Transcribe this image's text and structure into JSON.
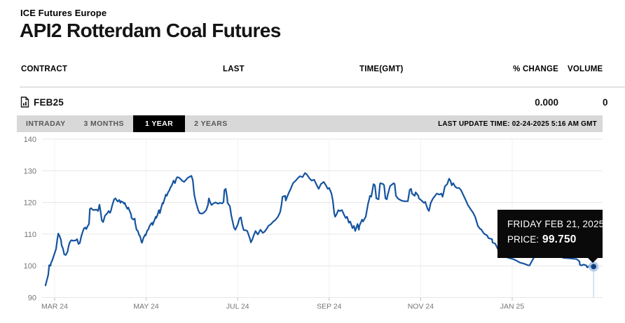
{
  "header": {
    "exchange": "ICE Futures Europe",
    "title": "API2 Rotterdam Coal Futures"
  },
  "table": {
    "columns": [
      "CONTRACT",
      "LAST",
      "TIME(GMT)",
      "% CHANGE",
      "VOLUME"
    ],
    "row": {
      "contract": "FEB25",
      "last": "",
      "time": "",
      "pct_change": "0.000",
      "volume": "0"
    }
  },
  "toolbar": {
    "tabs": [
      {
        "label": "INTRADAY",
        "active": false
      },
      {
        "label": "3 MONTHS",
        "active": false
      },
      {
        "label": "1 YEAR",
        "active": true
      },
      {
        "label": "2 YEARS",
        "active": false
      }
    ],
    "last_update": "LAST UPDATE TIME: 02-24-2025 5:16 AM GMT"
  },
  "tooltip": {
    "date_line": "FRIDAY FEB 21, 2025",
    "price_label": "PRICE:",
    "price_value": "99.750"
  },
  "colors": {
    "line": "#15549f",
    "marker": "#123f7c",
    "marker_halo": "#a9c7e6",
    "crosshair": "#bcd3ec",
    "grid": "#e6e6e6",
    "grid_vertical": "#f2f2f2",
    "axis_text": "#757575",
    "tooltip_bg": "#0a0a0a",
    "toolbar_bg": "#d8d8d8",
    "active_tab_bg": "#000000"
  },
  "chart_data": {
    "type": "line",
    "title": "API2 Rotterdam Coal Futures - 1 year price history",
    "xlabel": "",
    "ylabel": "Price",
    "x_unit": "months since MAR 24 tick (0 = Mar 2024, 11.78 = Feb 21 2025)",
    "ylim": [
      90,
      140
    ],
    "yticks": [
      90,
      100,
      110,
      120,
      130,
      140
    ],
    "xticks": [
      {
        "m": 0,
        "label": "MAR 24"
      },
      {
        "m": 2,
        "label": "MAY 24"
      },
      {
        "m": 4,
        "label": "JUL 24"
      },
      {
        "m": 6,
        "label": "SEP 24"
      },
      {
        "m": 8,
        "label": "NOV 24"
      },
      {
        "m": 10,
        "label": "JAN 25"
      }
    ],
    "grid": true,
    "legend": "none",
    "last_point": {
      "m": 11.78,
      "value": 99.75,
      "date": "FRIDAY FEB 21, 2025"
    },
    "points": [
      [
        -0.2,
        93.8
      ],
      [
        -0.17,
        95.5
      ],
      [
        -0.14,
        97.2
      ],
      [
        -0.12,
        100.2
      ],
      [
        -0.09,
        100.0
      ],
      [
        -0.08,
        100.9
      ],
      [
        -0.05,
        101.8
      ],
      [
        0.0,
        104.0
      ],
      [
        0.03,
        105.3
      ],
      [
        0.06,
        108.5
      ],
      [
        0.08,
        110.2
      ],
      [
        0.11,
        109.3
      ],
      [
        0.14,
        108.1
      ],
      [
        0.15,
        106.6
      ],
      [
        0.18,
        105.5
      ],
      [
        0.21,
        103.6
      ],
      [
        0.24,
        103.4
      ],
      [
        0.28,
        104.4
      ],
      [
        0.31,
        106.5
      ],
      [
        0.34,
        107.7
      ],
      [
        0.37,
        108.1
      ],
      [
        0.4,
        107.9
      ],
      [
        0.43,
        108.0
      ],
      [
        0.46,
        108.0
      ],
      [
        0.49,
        108.4
      ],
      [
        0.52,
        106.9
      ],
      [
        0.55,
        107.2
      ],
      [
        0.58,
        109.2
      ],
      [
        0.61,
        110.6
      ],
      [
        0.64,
        111.8
      ],
      [
        0.67,
        112.1
      ],
      [
        0.69,
        111.6
      ],
      [
        0.72,
        112.5
      ],
      [
        0.75,
        113.2
      ],
      [
        0.77,
        118.0
      ],
      [
        0.8,
        118.2
      ],
      [
        0.83,
        117.7
      ],
      [
        0.86,
        117.6
      ],
      [
        0.89,
        117.7
      ],
      [
        0.92,
        117.7
      ],
      [
        0.95,
        117.3
      ],
      [
        0.98,
        119.3
      ],
      [
        1.0,
        117.5
      ],
      [
        1.03,
        114.3
      ],
      [
        1.06,
        113.8
      ],
      [
        1.1,
        115.8
      ],
      [
        1.15,
        116.6
      ],
      [
        1.18,
        117.3
      ],
      [
        1.21,
        116.7
      ],
      [
        1.23,
        117.4
      ],
      [
        1.26,
        119.2
      ],
      [
        1.3,
        121.0
      ],
      [
        1.33,
        121.3
      ],
      [
        1.36,
        120.6
      ],
      [
        1.38,
        120.3
      ],
      [
        1.41,
        120.8
      ],
      [
        1.44,
        119.9
      ],
      [
        1.45,
        120.4
      ],
      [
        1.49,
        120.1
      ],
      [
        1.52,
        119.6
      ],
      [
        1.53,
        119.9
      ],
      [
        1.56,
        118.8
      ],
      [
        1.59,
        118.0
      ],
      [
        1.61,
        118.4
      ],
      [
        1.64,
        117.3
      ],
      [
        1.67,
        116.2
      ],
      [
        1.68,
        115.1
      ],
      [
        1.72,
        114.6
      ],
      [
        1.75,
        114.9
      ],
      [
        1.76,
        113.6
      ],
      [
        1.79,
        111.4
      ],
      [
        1.82,
        111.0
      ],
      [
        1.84,
        109.9
      ],
      [
        1.87,
        109.2
      ],
      [
        1.9,
        107.4
      ],
      [
        1.91,
        107.3
      ],
      [
        1.94,
        108.8
      ],
      [
        1.98,
        109.9
      ],
      [
        1.99,
        109.6
      ],
      [
        2.02,
        111.0
      ],
      [
        2.05,
        111.6
      ],
      [
        2.07,
        112.4
      ],
      [
        2.1,
        113.2
      ],
      [
        2.13,
        113.6
      ],
      [
        2.14,
        112.9
      ],
      [
        2.17,
        114.0
      ],
      [
        2.21,
        115.5
      ],
      [
        2.22,
        115.1
      ],
      [
        2.25,
        116.2
      ],
      [
        2.28,
        117.6
      ],
      [
        2.3,
        116.6
      ],
      [
        2.33,
        118.4
      ],
      [
        2.36,
        119.9
      ],
      [
        2.37,
        119.6
      ],
      [
        2.4,
        121.0
      ],
      [
        2.43,
        122.5
      ],
      [
        2.45,
        122.1
      ],
      [
        2.48,
        123.2
      ],
      [
        2.51,
        123.9
      ],
      [
        2.53,
        124.7
      ],
      [
        2.56,
        125.4
      ],
      [
        2.59,
        126.5
      ],
      [
        2.6,
        126.9
      ],
      [
        2.63,
        126.1
      ],
      [
        2.66,
        127.6
      ],
      [
        2.68,
        128.0
      ],
      [
        2.71,
        127.9
      ],
      [
        2.74,
        127.6
      ],
      [
        2.79,
        126.8
      ],
      [
        2.83,
        126.5
      ],
      [
        2.86,
        127.0
      ],
      [
        2.91,
        127.8
      ],
      [
        2.96,
        128.2
      ],
      [
        2.99,
        128.4
      ],
      [
        3.02,
        127.0
      ],
      [
        3.05,
        122.5
      ],
      [
        3.09,
        119.9
      ],
      [
        3.14,
        117.5
      ],
      [
        3.17,
        116.6
      ],
      [
        3.22,
        116.5
      ],
      [
        3.26,
        116.8
      ],
      [
        3.31,
        117.5
      ],
      [
        3.35,
        119.2
      ],
      [
        3.37,
        121.3
      ],
      [
        3.4,
        120.0
      ],
      [
        3.43,
        119.2
      ],
      [
        3.48,
        119.8
      ],
      [
        3.52,
        120.0
      ],
      [
        3.57,
        119.6
      ],
      [
        3.61,
        119.9
      ],
      [
        3.66,
        119.7
      ],
      [
        3.69,
        120.1
      ],
      [
        3.71,
        123.9
      ],
      [
        3.74,
        124.3
      ],
      [
        3.77,
        121.5
      ],
      [
        3.78,
        119.9
      ],
      [
        3.83,
        118.8
      ],
      [
        3.86,
        115.9
      ],
      [
        3.89,
        114.0
      ],
      [
        3.92,
        112.0
      ],
      [
        3.95,
        111.4
      ],
      [
        4.0,
        113.0
      ],
      [
        4.04,
        115.0
      ],
      [
        4.07,
        115.3
      ],
      [
        4.1,
        113.0
      ],
      [
        4.13,
        111.3
      ],
      [
        4.18,
        111.2
      ],
      [
        4.21,
        111.0
      ],
      [
        4.27,
        108.5
      ],
      [
        4.29,
        107.4
      ],
      [
        4.32,
        108.3
      ],
      [
        4.35,
        109.6
      ],
      [
        4.39,
        111.0
      ],
      [
        4.44,
        109.9
      ],
      [
        4.5,
        111.4
      ],
      [
        4.55,
        110.4
      ],
      [
        4.59,
        110.8
      ],
      [
        4.64,
        111.8
      ],
      [
        4.67,
        112.6
      ],
      [
        4.73,
        113.2
      ],
      [
        4.78,
        114.0
      ],
      [
        4.82,
        114.4
      ],
      [
        4.88,
        115.5
      ],
      [
        4.93,
        117.0
      ],
      [
        4.96,
        119.5
      ],
      [
        4.98,
        121.8
      ],
      [
        5.04,
        122.1
      ],
      [
        5.05,
        120.6
      ],
      [
        5.11,
        122.8
      ],
      [
        5.16,
        124.3
      ],
      [
        5.21,
        126.1
      ],
      [
        5.27,
        126.9
      ],
      [
        5.31,
        127.6
      ],
      [
        5.36,
        128.3
      ],
      [
        5.42,
        128.0
      ],
      [
        5.47,
        129.3
      ],
      [
        5.51,
        128.9
      ],
      [
        5.57,
        127.6
      ],
      [
        5.62,
        126.9
      ],
      [
        5.67,
        127.2
      ],
      [
        5.73,
        125.4
      ],
      [
        5.77,
        124.3
      ],
      [
        5.82,
        125.8
      ],
      [
        5.88,
        126.5
      ],
      [
        5.93,
        125.4
      ],
      [
        5.97,
        124.3
      ],
      [
        6.0,
        124.6
      ],
      [
        6.05,
        122.8
      ],
      [
        6.08,
        120.6
      ],
      [
        6.11,
        116.6
      ],
      [
        6.13,
        115.5
      ],
      [
        6.16,
        116.2
      ],
      [
        6.2,
        117.6
      ],
      [
        6.23,
        117.3
      ],
      [
        6.28,
        117.6
      ],
      [
        6.31,
        116.6
      ],
      [
        6.36,
        115.1
      ],
      [
        6.39,
        115.5
      ],
      [
        6.43,
        113.6
      ],
      [
        6.46,
        114.0
      ],
      [
        6.51,
        111.9
      ],
      [
        6.54,
        112.6
      ],
      [
        6.57,
        111.0
      ],
      [
        6.62,
        113.2
      ],
      [
        6.65,
        111.4
      ],
      [
        6.66,
        112.6
      ],
      [
        6.72,
        114.6
      ],
      [
        6.74,
        114.0
      ],
      [
        6.8,
        115.5
      ],
      [
        6.85,
        119.6
      ],
      [
        6.88,
        121.3
      ],
      [
        6.89,
        122.1
      ],
      [
        6.92,
        121.8
      ],
      [
        6.97,
        125.8
      ],
      [
        7.0,
        125.4
      ],
      [
        7.03,
        121.3
      ],
      [
        7.08,
        121.0
      ],
      [
        7.11,
        125.8
      ],
      [
        7.12,
        126.1
      ],
      [
        7.18,
        125.8
      ],
      [
        7.2,
        125.4
      ],
      [
        7.23,
        121.3
      ],
      [
        7.26,
        121.0
      ],
      [
        7.27,
        121.8
      ],
      [
        7.33,
        125.1
      ],
      [
        7.35,
        125.4
      ],
      [
        7.41,
        126.1
      ],
      [
        7.43,
        125.8
      ],
      [
        7.46,
        122.1
      ],
      [
        7.5,
        121.3
      ],
      [
        7.53,
        121.0
      ],
      [
        7.58,
        120.6
      ],
      [
        7.64,
        120.4
      ],
      [
        7.72,
        120.4
      ],
      [
        7.76,
        124.0
      ],
      [
        7.79,
        124.3
      ],
      [
        7.81,
        122.8
      ],
      [
        7.87,
        122.1
      ],
      [
        7.89,
        123.2
      ],
      [
        7.95,
        122.1
      ],
      [
        7.96,
        121.3
      ],
      [
        8.02,
        120.6
      ],
      [
        8.07,
        119.9
      ],
      [
        8.1,
        120.2
      ],
      [
        8.15,
        118.0
      ],
      [
        8.18,
        117.3
      ],
      [
        8.22,
        119.9
      ],
      [
        8.27,
        121.3
      ],
      [
        8.3,
        121.8
      ],
      [
        8.35,
        122.8
      ],
      [
        8.41,
        122.5
      ],
      [
        8.45,
        122.8
      ],
      [
        8.48,
        121.8
      ],
      [
        8.53,
        125.1
      ],
      [
        8.58,
        125.8
      ],
      [
        8.62,
        127.5
      ],
      [
        8.65,
        126.9
      ],
      [
        8.68,
        125.4
      ],
      [
        8.71,
        126.1
      ],
      [
        8.76,
        124.9
      ],
      [
        8.79,
        124.6
      ],
      [
        8.84,
        124.6
      ],
      [
        8.88,
        123.9
      ],
      [
        8.94,
        122.1
      ],
      [
        8.99,
        120.6
      ],
      [
        9.03,
        119.2
      ],
      [
        9.1,
        117.7
      ],
      [
        9.14,
        116.9
      ],
      [
        9.19,
        115.5
      ],
      [
        9.25,
        112.6
      ],
      [
        9.29,
        111.8
      ],
      [
        9.33,
        111.4
      ],
      [
        9.37,
        110.4
      ],
      [
        9.4,
        110.0
      ],
      [
        9.45,
        109.6
      ],
      [
        9.48,
        108.8
      ],
      [
        9.49,
        108.7
      ],
      [
        9.56,
        108.4
      ],
      [
        9.57,
        107.4
      ],
      [
        9.63,
        107.0
      ],
      [
        9.68,
        105.5
      ],
      [
        9.74,
        104.0
      ],
      [
        9.8,
        103.2
      ],
      [
        9.86,
        102.8
      ],
      [
        9.92,
        102.5
      ],
      [
        9.98,
        102.3
      ],
      [
        10.04,
        102.0
      ],
      [
        10.11,
        101.5
      ],
      [
        10.17,
        101.0
      ],
      [
        10.23,
        100.8
      ],
      [
        10.29,
        100.5
      ],
      [
        10.34,
        100.2
      ],
      [
        10.38,
        100.1
      ],
      [
        10.43,
        101.5
      ],
      [
        10.47,
        102.5
      ],
      [
        10.54,
        103.5
      ],
      [
        10.6,
        104.0
      ],
      [
        10.67,
        104.2
      ],
      [
        10.75,
        103.8
      ],
      [
        10.83,
        103.5
      ],
      [
        10.9,
        103.2
      ],
      [
        10.98,
        103.0
      ],
      [
        11.06,
        102.8
      ],
      [
        11.13,
        102.5
      ],
      [
        11.21,
        102.4
      ],
      [
        11.29,
        102.3
      ],
      [
        11.35,
        102.2
      ],
      [
        11.41,
        102.1
      ],
      [
        11.47,
        101.4
      ],
      [
        11.48,
        100.3
      ],
      [
        11.51,
        100.1
      ],
      [
        11.56,
        100.4
      ],
      [
        11.62,
        100.1
      ],
      [
        11.64,
        99.5
      ],
      [
        11.7,
        100.1
      ],
      [
        11.74,
        99.7
      ],
      [
        11.78,
        99.75
      ]
    ]
  }
}
